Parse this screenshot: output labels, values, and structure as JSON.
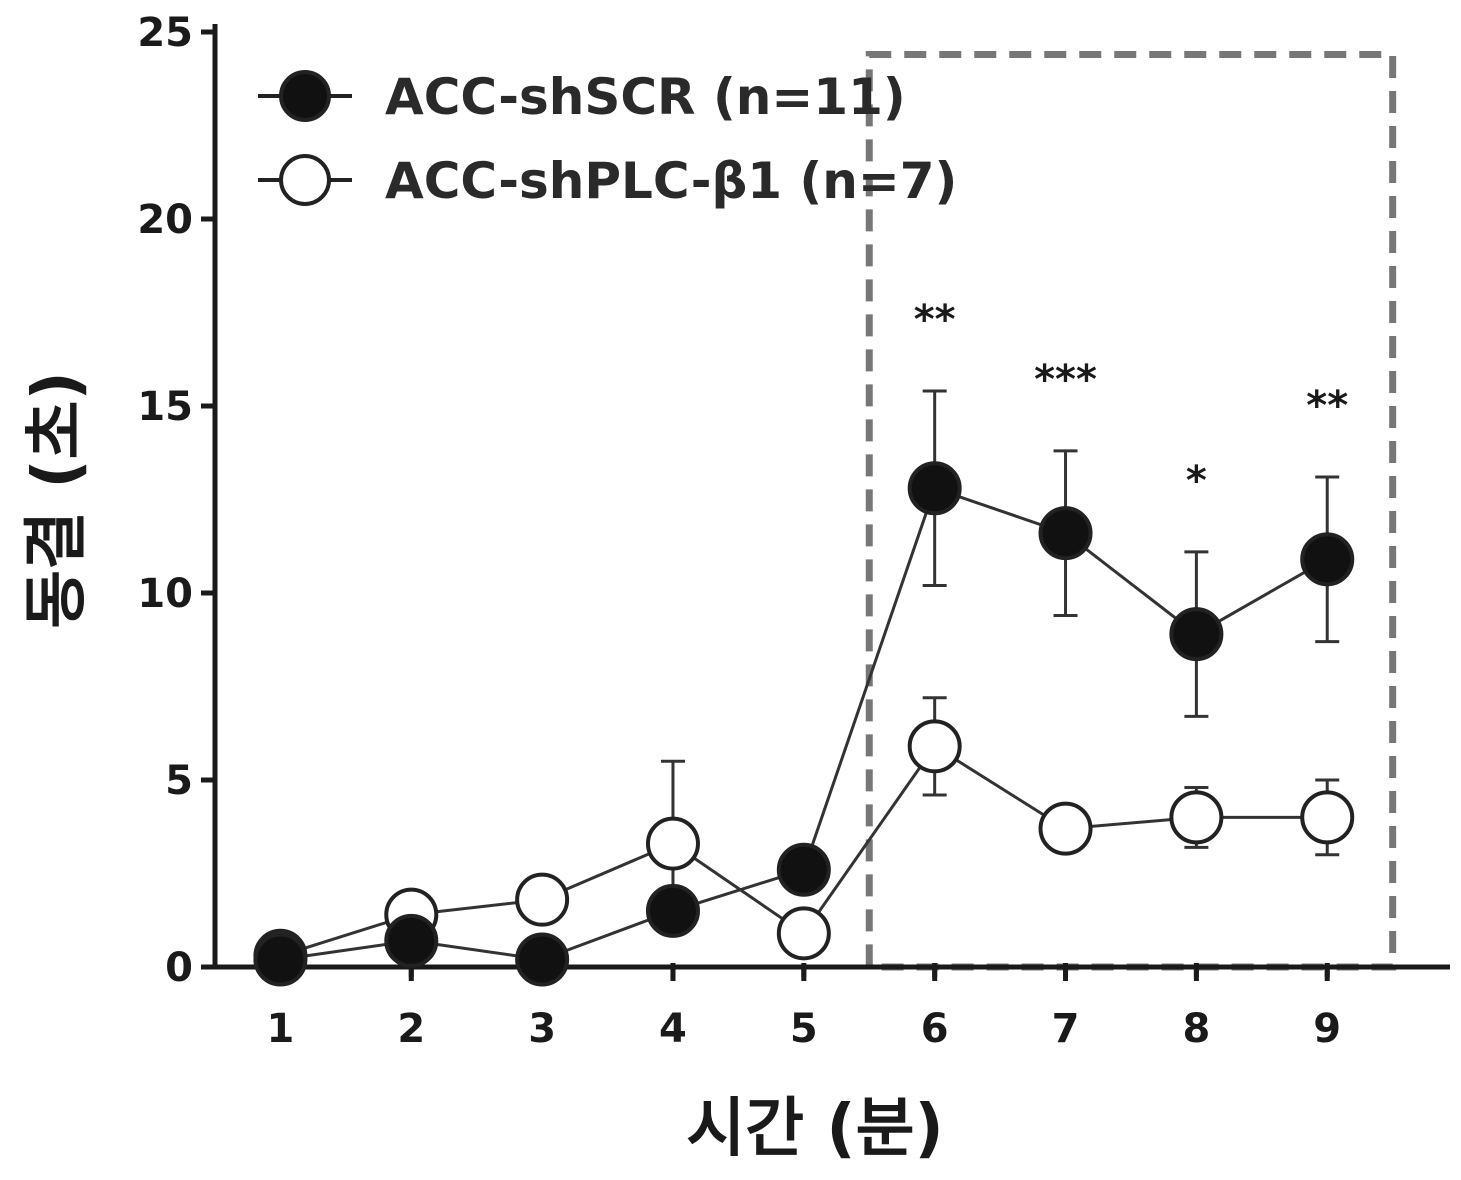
{
  "chart_data": {
    "type": "line",
    "xlabel": "시간 (분)",
    "ylabel": "동결 (초)",
    "categories": [
      "1",
      "2",
      "3",
      "4",
      "5",
      "6",
      "7",
      "8",
      "9"
    ],
    "x": [
      1,
      2,
      3,
      4,
      5,
      6,
      7,
      8,
      9
    ],
    "ylim": [
      0,
      25
    ],
    "xlim": [
      0.5,
      9.9
    ],
    "yticks": [
      "0",
      "5",
      "10",
      "15",
      "20",
      "25"
    ],
    "legend_position": "top-left",
    "series": [
      {
        "name": "ACC-shSCR (n=11)",
        "marker": "filled-circle",
        "values": [
          0.2,
          0.7,
          0.2,
          1.5,
          2.6,
          12.8,
          11.6,
          8.9,
          10.9
        ],
        "error": [
          0.0,
          0.0,
          0.0,
          0.0,
          0.0,
          2.6,
          2.2,
          2.2,
          2.2
        ]
      },
      {
        "name": "ACC-shPLC-β1 (n=7)",
        "marker": "open-circle",
        "values": [
          0.3,
          1.4,
          1.8,
          3.3,
          0.9,
          5.9,
          3.7,
          4.0,
          4.0
        ],
        "error": [
          0.0,
          0.0,
          0.0,
          2.2,
          0.0,
          1.3,
          0.0,
          0.8,
          1.0
        ]
      }
    ],
    "significance": [
      {
        "x": 6,
        "label": "**"
      },
      {
        "x": 7,
        "label": "***"
      },
      {
        "x": 8,
        "label": "*"
      },
      {
        "x": 9,
        "label": "**"
      }
    ],
    "highlight_region": {
      "x_from": 5.5,
      "x_to": 9.5,
      "style": "dashed"
    },
    "colors": {
      "filled": "#111111",
      "open": "#ffffff",
      "axis": "#1a1a1a",
      "dash": "#777777"
    }
  }
}
